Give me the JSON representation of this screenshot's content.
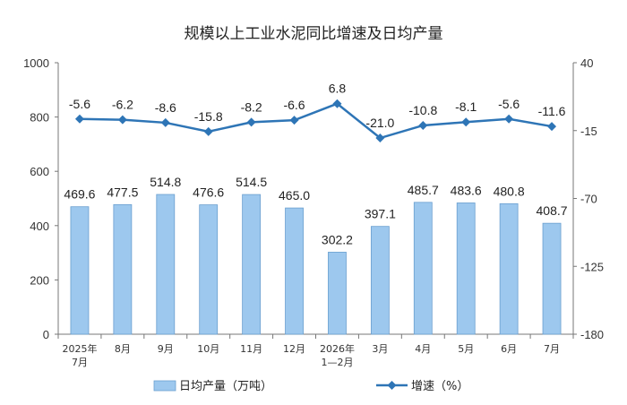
{
  "chart_data": {
    "type": "bar",
    "title": "规模以上工业水泥同比增速及日均产量",
    "categories": [
      [
        "2025年",
        "7月"
      ],
      [
        "8月"
      ],
      [
        "9月"
      ],
      [
        "10月"
      ],
      [
        "11月"
      ],
      [
        "12月"
      ],
      [
        "2026年",
        "1—2月"
      ],
      [
        "3月"
      ],
      [
        "4月"
      ],
      [
        "5月"
      ],
      [
        "6月"
      ],
      [
        "7月"
      ]
    ],
    "series": [
      {
        "name": "日均产量（万吨）",
        "type": "bar",
        "axis": "left",
        "values": [
          469.6,
          477.5,
          514.8,
          476.6,
          514.5,
          465.0,
          302.2,
          397.1,
          485.7,
          483.6,
          480.8,
          408.7
        ],
        "labels": [
          "469.6",
          "477.5",
          "514.8",
          "476.6",
          "514.5",
          "465.0",
          "302.2",
          "397.1",
          "485.7",
          "483.6",
          "480.8",
          "408.7"
        ],
        "color": "#9DC8EE"
      },
      {
        "name": "增速（%）",
        "type": "line",
        "axis": "right",
        "values": [
          -5.6,
          -6.2,
          -8.6,
          -15.8,
          -8.2,
          -6.6,
          6.8,
          -21.0,
          -10.8,
          -8.1,
          -5.6,
          -11.6
        ],
        "labels": [
          "-5.6",
          "-6.2",
          "-8.6",
          "-15.8",
          "-8.2",
          "-6.6",
          "6.8",
          "-21.0",
          "-10.8",
          "-8.1",
          "-5.6",
          "-11.6"
        ],
        "color": "#2E75B6"
      }
    ],
    "y_left": {
      "range": [
        0,
        1000
      ],
      "ticks": [
        "0",
        "200",
        "400",
        "600",
        "800",
        "1000"
      ]
    },
    "y_right": {
      "range": [
        -180,
        40
      ],
      "ticks": [
        "-180",
        "-125",
        "-70",
        "-15",
        "40"
      ]
    },
    "legend_position": "bottom",
    "grid": false
  }
}
